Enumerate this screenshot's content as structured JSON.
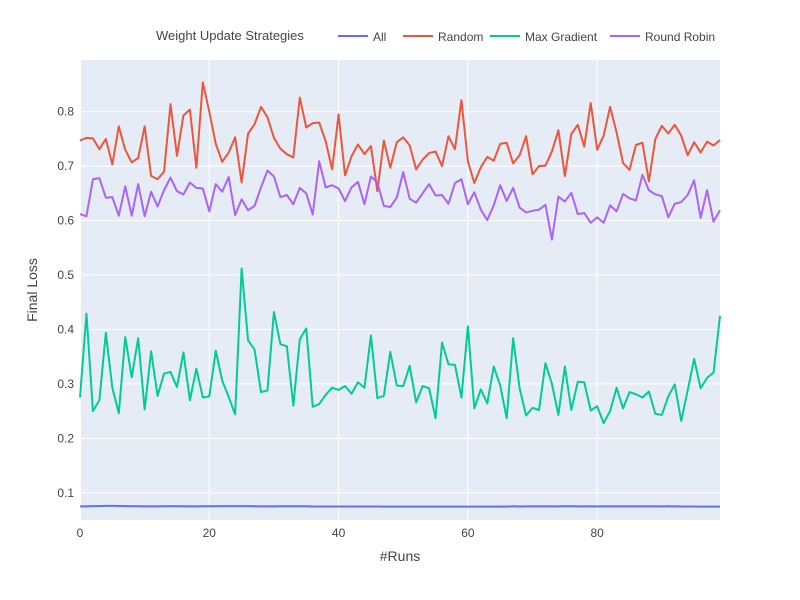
{
  "chart_data": {
    "type": "line",
    "title": "",
    "xlabel": "#Runs",
    "ylabel": "Final Loss",
    "xlim": [
      0,
      99
    ],
    "ylim": [
      0.05,
      0.895
    ],
    "xticks": [
      0,
      20,
      40,
      60,
      80
    ],
    "yticks": [
      0.1,
      0.2,
      0.3,
      0.4,
      0.5,
      0.6,
      0.7,
      0.8
    ],
    "grid": true,
    "legend": {
      "title": "Weight Update Strategies",
      "placement": "top",
      "orientation": "horizontal"
    },
    "series": [
      {
        "name": "All",
        "color": "#636efa",
        "values": [
          0.075,
          0.075,
          0.0755,
          0.0755,
          0.076,
          0.076,
          0.0758,
          0.0755,
          0.0752,
          0.0752,
          0.075,
          0.075,
          0.075,
          0.0752,
          0.0755,
          0.0752,
          0.0752,
          0.075,
          0.075,
          0.0752,
          0.0752,
          0.0752,
          0.0755,
          0.0755,
          0.0755,
          0.0755,
          0.0755,
          0.0752,
          0.075,
          0.075,
          0.075,
          0.0752,
          0.0752,
          0.0752,
          0.0752,
          0.0752,
          0.0748,
          0.0748,
          0.0748,
          0.0748,
          0.0748,
          0.0748,
          0.0748,
          0.0748,
          0.0748,
          0.0748,
          0.0748,
          0.0745,
          0.0745,
          0.0745,
          0.0745,
          0.0745,
          0.0745,
          0.0745,
          0.0745,
          0.0745,
          0.0745,
          0.0745,
          0.0745,
          0.0745,
          0.0745,
          0.0745,
          0.0745,
          0.0745,
          0.0745,
          0.0748,
          0.0745,
          0.0752,
          0.0748,
          0.075,
          0.075,
          0.075,
          0.075,
          0.075,
          0.075,
          0.0752,
          0.0752,
          0.075,
          0.075,
          0.075,
          0.075,
          0.075,
          0.075,
          0.075,
          0.075,
          0.075,
          0.075,
          0.075,
          0.075,
          0.075,
          0.075,
          0.0752,
          0.075,
          0.0748,
          0.0748,
          0.0748,
          0.0745,
          0.0745,
          0.0745,
          0.0745
        ]
      },
      {
        "name": "Random",
        "color": "#ef553b",
        "values": [
          0.747,
          0.752,
          0.751,
          0.731,
          0.75,
          0.703,
          0.773,
          0.73,
          0.707,
          0.715,
          0.773,
          0.682,
          0.676,
          0.69,
          0.814,
          0.719,
          0.793,
          0.804,
          0.697,
          0.854,
          0.8,
          0.741,
          0.708,
          0.725,
          0.753,
          0.67,
          0.76,
          0.777,
          0.809,
          0.79,
          0.752,
          0.732,
          0.722,
          0.716,
          0.826,
          0.771,
          0.779,
          0.78,
          0.746,
          0.694,
          0.795,
          0.683,
          0.718,
          0.74,
          0.722,
          0.737,
          0.654,
          0.747,
          0.697,
          0.744,
          0.753,
          0.738,
          0.694,
          0.712,
          0.724,
          0.727,
          0.7,
          0.755,
          0.731,
          0.821,
          0.709,
          0.669,
          0.698,
          0.717,
          0.71,
          0.741,
          0.743,
          0.705,
          0.72,
          0.755,
          0.685,
          0.7,
          0.701,
          0.727,
          0.766,
          0.682,
          0.759,
          0.776,
          0.736,
          0.816,
          0.73,
          0.756,
          0.809,
          0.762,
          0.706,
          0.693,
          0.739,
          0.743,
          0.672,
          0.75,
          0.774,
          0.76,
          0.776,
          0.756,
          0.72,
          0.744,
          0.725,
          0.745,
          0.738,
          0.748
        ]
      },
      {
        "name": "Max Gradient",
        "color": "#00cc96",
        "values": [
          0.275,
          0.429,
          0.25,
          0.27,
          0.394,
          0.293,
          0.246,
          0.386,
          0.312,
          0.384,
          0.253,
          0.36,
          0.278,
          0.319,
          0.322,
          0.294,
          0.358,
          0.27,
          0.328,
          0.275,
          0.277,
          0.361,
          0.306,
          0.276,
          0.244,
          0.512,
          0.38,
          0.363,
          0.285,
          0.288,
          0.432,
          0.373,
          0.369,
          0.26,
          0.382,
          0.402,
          0.258,
          0.263,
          0.28,
          0.293,
          0.289,
          0.296,
          0.282,
          0.303,
          0.293,
          0.389,
          0.274,
          0.278,
          0.359,
          0.297,
          0.296,
          0.333,
          0.266,
          0.296,
          0.292,
          0.237,
          0.376,
          0.336,
          0.335,
          0.275,
          0.406,
          0.255,
          0.29,
          0.264,
          0.332,
          0.297,
          0.237,
          0.384,
          0.292,
          0.242,
          0.256,
          0.252,
          0.338,
          0.3,
          0.243,
          0.332,
          0.252,
          0.304,
          0.303,
          0.251,
          0.259,
          0.228,
          0.25,
          0.293,
          0.255,
          0.285,
          0.281,
          0.275,
          0.286,
          0.245,
          0.243,
          0.277,
          0.299,
          0.232,
          0.288,
          0.346,
          0.292,
          0.311,
          0.321,
          0.425
        ]
      },
      {
        "name": "Round Robin",
        "color": "#ab63fa",
        "values": [
          0.612,
          0.608,
          0.676,
          0.678,
          0.642,
          0.643,
          0.609,
          0.663,
          0.609,
          0.667,
          0.608,
          0.653,
          0.626,
          0.656,
          0.679,
          0.654,
          0.648,
          0.67,
          0.66,
          0.659,
          0.617,
          0.667,
          0.653,
          0.68,
          0.61,
          0.639,
          0.619,
          0.627,
          0.661,
          0.692,
          0.681,
          0.643,
          0.647,
          0.63,
          0.66,
          0.65,
          0.611,
          0.709,
          0.661,
          0.665,
          0.659,
          0.636,
          0.661,
          0.671,
          0.63,
          0.681,
          0.67,
          0.627,
          0.625,
          0.642,
          0.689,
          0.64,
          0.633,
          0.65,
          0.667,
          0.646,
          0.647,
          0.631,
          0.669,
          0.676,
          0.63,
          0.652,
          0.62,
          0.601,
          0.628,
          0.665,
          0.636,
          0.66,
          0.624,
          0.615,
          0.618,
          0.62,
          0.629,
          0.565,
          0.644,
          0.635,
          0.651,
          0.612,
          0.614,
          0.596,
          0.606,
          0.596,
          0.628,
          0.617,
          0.649,
          0.641,
          0.637,
          0.684,
          0.656,
          0.648,
          0.645,
          0.606,
          0.631,
          0.634,
          0.647,
          0.674,
          0.605,
          0.656,
          0.598,
          0.619
        ]
      }
    ]
  }
}
